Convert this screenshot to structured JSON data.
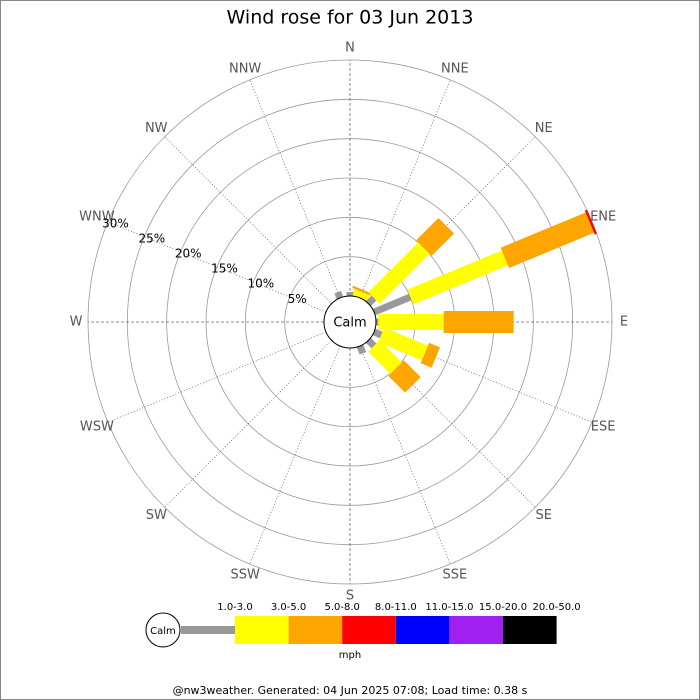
{
  "chart_data": {
    "type": "windrose",
    "title": "Wind rose for 03 Jun 2013",
    "directions": [
      "N",
      "NNE",
      "NE",
      "ENE",
      "E",
      "ESE",
      "SE",
      "SSE",
      "S",
      "SSW",
      "SW",
      "WSW",
      "W",
      "WNW",
      "NW",
      "NNW"
    ],
    "rlim": [
      0,
      30
    ],
    "rticks": [
      {
        "value": 5,
        "label": "5%"
      },
      {
        "value": 10,
        "label": "10%"
      },
      {
        "value": 15,
        "label": "15%"
      },
      {
        "value": 20,
        "label": "20%"
      },
      {
        "value": 25,
        "label": "25%"
      },
      {
        "value": 30,
        "label": "30%"
      }
    ],
    "calm_label": "Calm",
    "series": [
      {
        "name": "1.0-3.0",
        "color": "#999999",
        "values": [
          0.5,
          0,
          1,
          5,
          0.3,
          1,
          1,
          1,
          0,
          0,
          0,
          0,
          0,
          0,
          0,
          0.8
        ]
      },
      {
        "name": "3.0-5.0",
        "color": "#ffff00",
        "values": [
          0,
          0.8,
          9,
          13,
          8.3,
          6,
          4,
          0,
          0,
          0,
          0,
          0,
          0,
          0,
          0,
          0
        ]
      },
      {
        "name": "5.0-8.0",
        "color": "#ffa500",
        "values": [
          0,
          0.3,
          4,
          11.7,
          8.9,
          1.5,
          3,
          0,
          0,
          0,
          0,
          0,
          0,
          0,
          0,
          0
        ]
      },
      {
        "name": "8.0-11.0",
        "color": "#ff0000",
        "values": [
          0,
          0,
          0,
          0.3,
          0,
          0,
          0,
          0,
          0,
          0,
          0,
          0,
          0,
          0,
          0,
          0
        ]
      },
      {
        "name": "11.0-15.0",
        "color": "#0000ff",
        "values": [
          0,
          0,
          0,
          0,
          0,
          0,
          0,
          0,
          0,
          0,
          0,
          0,
          0,
          0,
          0,
          0
        ]
      },
      {
        "name": "15.0-20.0",
        "color": "#a020f0",
        "values": [
          0,
          0,
          0,
          0,
          0,
          0,
          0,
          0,
          0,
          0,
          0,
          0,
          0,
          0,
          0,
          0
        ]
      },
      {
        "name": "20.0-50.0",
        "color": "#000000",
        "values": [
          0,
          0,
          0,
          0,
          0,
          0,
          0,
          0,
          0,
          0,
          0,
          0,
          0,
          0,
          0,
          0
        ]
      }
    ],
    "unit": "mph",
    "footer": "@nw3weather. Generated: 04 Jun 2025 07:08; Load time: 0.38 s"
  }
}
